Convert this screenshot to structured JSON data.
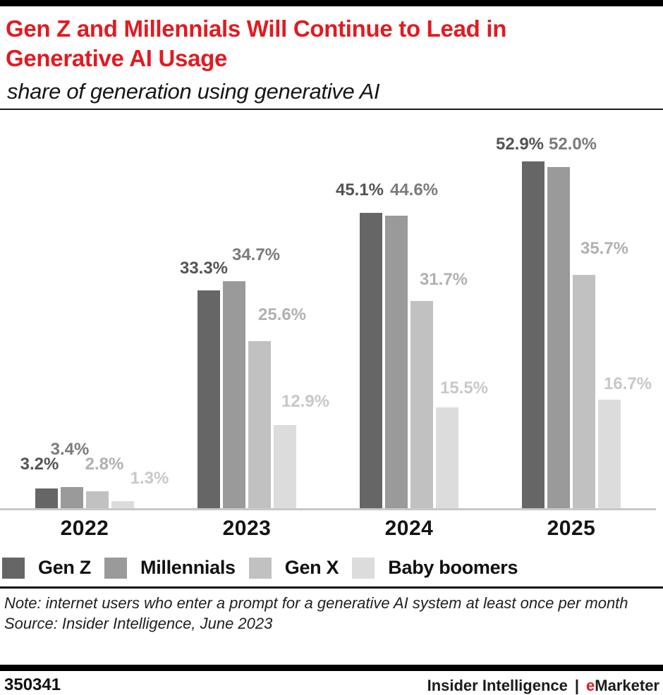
{
  "chart_data": {
    "type": "bar",
    "title": "Gen Z and Millennials Will Continue to Lead in Generative AI Usage",
    "subtitle": "share of generation using generative AI",
    "categories": [
      "2022",
      "2023",
      "2024",
      "2025"
    ],
    "series": [
      {
        "name": "Gen Z",
        "values": [
          3.2,
          33.3,
          45.1,
          52.9
        ],
        "color": "#666666",
        "label_color": "#545454"
      },
      {
        "name": "Millennials",
        "values": [
          3.4,
          34.7,
          44.6,
          52.0
        ],
        "color": "#9a9a9a",
        "label_color": "#7b7b7b"
      },
      {
        "name": "Gen X",
        "values": [
          2.8,
          25.6,
          31.7,
          35.7
        ],
        "color": "#c1c1c1",
        "label_color": "#b1b1b1"
      },
      {
        "name": "Baby boomers",
        "values": [
          1.3,
          12.9,
          15.5,
          16.7
        ],
        "color": "#dcdcdc",
        "label_color": "#c8c8c8"
      }
    ],
    "value_suffix": "%",
    "xlabel": "",
    "ylabel": "",
    "ylim": [
      0,
      60
    ],
    "grid": false,
    "legend_position": "bottom",
    "value_labels": "above-bars"
  },
  "footnote": {
    "note": "Note: internet users who enter a prompt for a generative AI system at least once per month",
    "source": "Source: Insider Intelligence, June 2023"
  },
  "footer": {
    "chart_id": "350341",
    "brand_left": "Insider Intelligence",
    "brand_separator": "|",
    "brand_accent": "e",
    "brand_rest": "Marketer"
  },
  "colors": {
    "accent_red": "#e01b22",
    "axis_line": "#c8c8c8",
    "rule_black": "#000000"
  }
}
